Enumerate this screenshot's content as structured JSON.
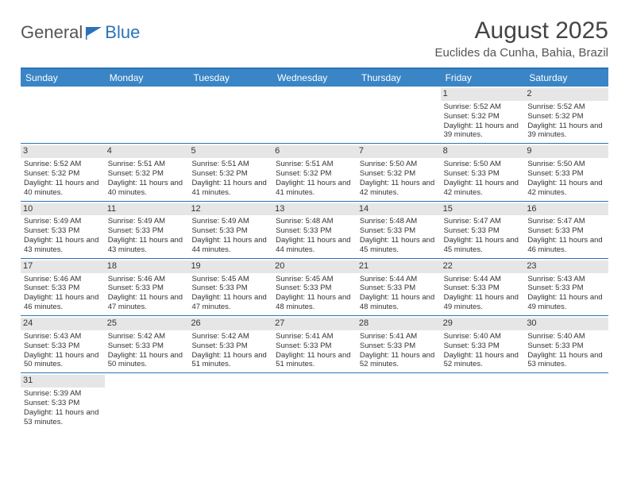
{
  "logo": {
    "part1": "General",
    "part2": "Blue"
  },
  "title": "August 2025",
  "location": "Euclides da Cunha, Bahia, Brazil",
  "calendar": {
    "weekdays": [
      "Sunday",
      "Monday",
      "Tuesday",
      "Wednesday",
      "Thursday",
      "Friday",
      "Saturday"
    ],
    "header_bg": "#3a85c6",
    "header_fg": "#ffffff",
    "border_color": "#2b73b8",
    "daynum_bg": "#e6e6e6",
    "weeks": [
      [
        null,
        null,
        null,
        null,
        null,
        {
          "d": "1",
          "sunrise": "5:52 AM",
          "sunset": "5:32 PM",
          "daylight": "11 hours and 39 minutes."
        },
        {
          "d": "2",
          "sunrise": "5:52 AM",
          "sunset": "5:32 PM",
          "daylight": "11 hours and 39 minutes."
        }
      ],
      [
        {
          "d": "3",
          "sunrise": "5:52 AM",
          "sunset": "5:32 PM",
          "daylight": "11 hours and 40 minutes."
        },
        {
          "d": "4",
          "sunrise": "5:51 AM",
          "sunset": "5:32 PM",
          "daylight": "11 hours and 40 minutes."
        },
        {
          "d": "5",
          "sunrise": "5:51 AM",
          "sunset": "5:32 PM",
          "daylight": "11 hours and 41 minutes."
        },
        {
          "d": "6",
          "sunrise": "5:51 AM",
          "sunset": "5:32 PM",
          "daylight": "11 hours and 41 minutes."
        },
        {
          "d": "7",
          "sunrise": "5:50 AM",
          "sunset": "5:32 PM",
          "daylight": "11 hours and 42 minutes."
        },
        {
          "d": "8",
          "sunrise": "5:50 AM",
          "sunset": "5:33 PM",
          "daylight": "11 hours and 42 minutes."
        },
        {
          "d": "9",
          "sunrise": "5:50 AM",
          "sunset": "5:33 PM",
          "daylight": "11 hours and 42 minutes."
        }
      ],
      [
        {
          "d": "10",
          "sunrise": "5:49 AM",
          "sunset": "5:33 PM",
          "daylight": "11 hours and 43 minutes."
        },
        {
          "d": "11",
          "sunrise": "5:49 AM",
          "sunset": "5:33 PM",
          "daylight": "11 hours and 43 minutes."
        },
        {
          "d": "12",
          "sunrise": "5:49 AM",
          "sunset": "5:33 PM",
          "daylight": "11 hours and 44 minutes."
        },
        {
          "d": "13",
          "sunrise": "5:48 AM",
          "sunset": "5:33 PM",
          "daylight": "11 hours and 44 minutes."
        },
        {
          "d": "14",
          "sunrise": "5:48 AM",
          "sunset": "5:33 PM",
          "daylight": "11 hours and 45 minutes."
        },
        {
          "d": "15",
          "sunrise": "5:47 AM",
          "sunset": "5:33 PM",
          "daylight": "11 hours and 45 minutes."
        },
        {
          "d": "16",
          "sunrise": "5:47 AM",
          "sunset": "5:33 PM",
          "daylight": "11 hours and 46 minutes."
        }
      ],
      [
        {
          "d": "17",
          "sunrise": "5:46 AM",
          "sunset": "5:33 PM",
          "daylight": "11 hours and 46 minutes."
        },
        {
          "d": "18",
          "sunrise": "5:46 AM",
          "sunset": "5:33 PM",
          "daylight": "11 hours and 47 minutes."
        },
        {
          "d": "19",
          "sunrise": "5:45 AM",
          "sunset": "5:33 PM",
          "daylight": "11 hours and 47 minutes."
        },
        {
          "d": "20",
          "sunrise": "5:45 AM",
          "sunset": "5:33 PM",
          "daylight": "11 hours and 48 minutes."
        },
        {
          "d": "21",
          "sunrise": "5:44 AM",
          "sunset": "5:33 PM",
          "daylight": "11 hours and 48 minutes."
        },
        {
          "d": "22",
          "sunrise": "5:44 AM",
          "sunset": "5:33 PM",
          "daylight": "11 hours and 49 minutes."
        },
        {
          "d": "23",
          "sunrise": "5:43 AM",
          "sunset": "5:33 PM",
          "daylight": "11 hours and 49 minutes."
        }
      ],
      [
        {
          "d": "24",
          "sunrise": "5:43 AM",
          "sunset": "5:33 PM",
          "daylight": "11 hours and 50 minutes."
        },
        {
          "d": "25",
          "sunrise": "5:42 AM",
          "sunset": "5:33 PM",
          "daylight": "11 hours and 50 minutes."
        },
        {
          "d": "26",
          "sunrise": "5:42 AM",
          "sunset": "5:33 PM",
          "daylight": "11 hours and 51 minutes."
        },
        {
          "d": "27",
          "sunrise": "5:41 AM",
          "sunset": "5:33 PM",
          "daylight": "11 hours and 51 minutes."
        },
        {
          "d": "28",
          "sunrise": "5:41 AM",
          "sunset": "5:33 PM",
          "daylight": "11 hours and 52 minutes."
        },
        {
          "d": "29",
          "sunrise": "5:40 AM",
          "sunset": "5:33 PM",
          "daylight": "11 hours and 52 minutes."
        },
        {
          "d": "30",
          "sunrise": "5:40 AM",
          "sunset": "5:33 PM",
          "daylight": "11 hours and 53 minutes."
        }
      ],
      [
        {
          "d": "31",
          "sunrise": "5:39 AM",
          "sunset": "5:33 PM",
          "daylight": "11 hours and 53 minutes."
        },
        null,
        null,
        null,
        null,
        null,
        null
      ]
    ],
    "labels": {
      "sunrise": "Sunrise:",
      "sunset": "Sunset:",
      "daylight": "Daylight:"
    }
  }
}
